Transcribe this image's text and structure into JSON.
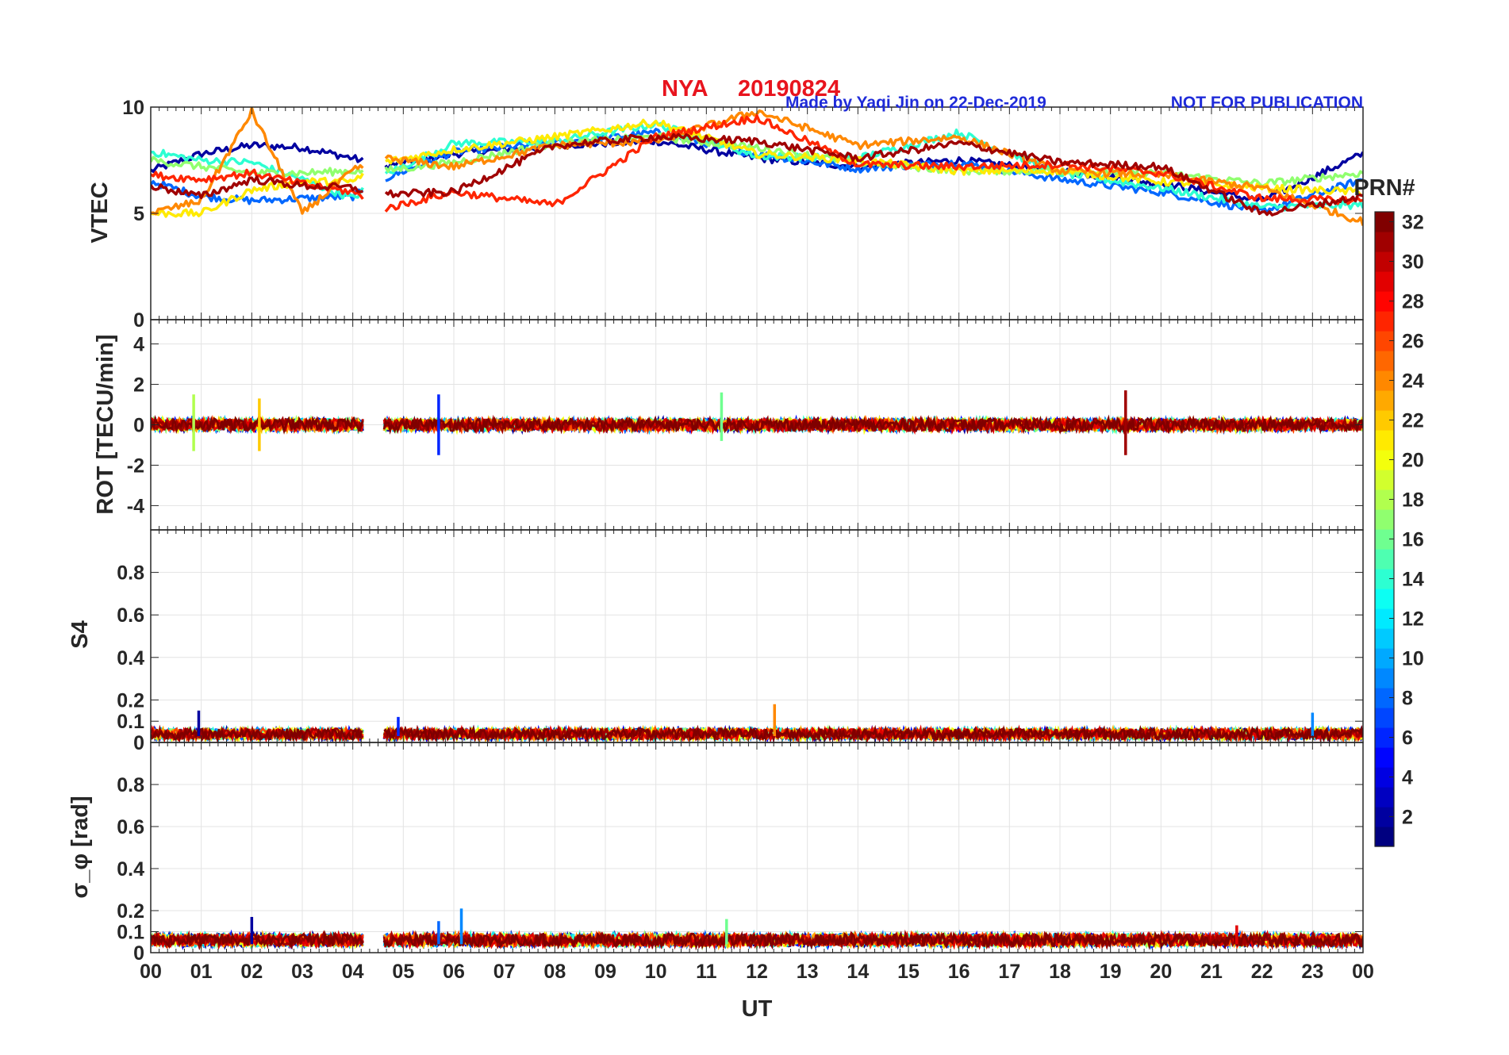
{
  "header": {
    "station": "NYA",
    "date": "20190824",
    "credit": "Made by Yaqi Jin on 22-Dec-2019",
    "notice": "NOT FOR PUBLICATION",
    "title_color": "#e8141e",
    "note_color": "#1f2bd9"
  },
  "chart_data": {
    "type": "line",
    "title": "NYA   20190824",
    "xlabel": "UT",
    "x_range": [
      0,
      24
    ],
    "x_ticks": [
      "00",
      "01",
      "02",
      "03",
      "04",
      "05",
      "06",
      "07",
      "08",
      "09",
      "10",
      "11",
      "12",
      "13",
      "14",
      "15",
      "16",
      "17",
      "18",
      "19",
      "20",
      "21",
      "22",
      "23",
      "00"
    ],
    "data_gap_ut": [
      4.2,
      4.6
    ],
    "colorbar": {
      "label": "PRN#",
      "range": [
        1,
        32
      ],
      "ticks": [
        "2",
        "4",
        "6",
        "8",
        "10",
        "12",
        "14",
        "16",
        "18",
        "20",
        "22",
        "24",
        "26",
        "28",
        "30",
        "32"
      ],
      "colormap": "jet"
    },
    "panels": [
      {
        "name": "vtec",
        "ylabel": "VTEC",
        "ylim": [
          0,
          10
        ],
        "yticks": [
          0,
          5,
          10
        ],
        "ytick_labels": [
          "0",
          "5",
          "10"
        ],
        "series_summary": [
          {
            "prn": 2,
            "ut": [
              0,
              1,
              2,
              3,
              4,
              4.6,
              6,
              8,
              10,
              12,
              14,
              16,
              18,
              20,
              22,
              24
            ],
            "values": [
              7,
              7.8,
              8.2,
              8.1,
              7.6,
              7.2,
              7.8,
              8.2,
              8.4,
              7.6,
              7.2,
              7.5,
              7.0,
              6.4,
              5.6,
              7.8
            ]
          },
          {
            "prn": 8,
            "ut": [
              0,
              1,
              2,
              3,
              4,
              4.6,
              6,
              8,
              10,
              12,
              14,
              16,
              18,
              20,
              22,
              24
            ],
            "values": [
              6.5,
              5.8,
              5.6,
              5.7,
              5.8,
              6.6,
              7.9,
              8.3,
              8.8,
              7.8,
              7.1,
              7.4,
              6.6,
              6.0,
              5.1,
              6.6
            ]
          },
          {
            "prn": 14,
            "ut": [
              0,
              1,
              2,
              3,
              4,
              4.6,
              6,
              8,
              10,
              12,
              14,
              16,
              18,
              20,
              22,
              24
            ],
            "values": [
              7.9,
              7.5,
              7.4,
              6.6,
              5.7,
              6.8,
              8.3,
              8.4,
              9.2,
              7.7,
              7.6,
              8.8,
              6.9,
              6.2,
              5.3,
              5.4
            ]
          },
          {
            "prn": 17,
            "ut": [
              0,
              1,
              2,
              3,
              4,
              4.6,
              6,
              8,
              10,
              12,
              14,
              16,
              18,
              20,
              22,
              24
            ],
            "values": [
              7.5,
              7.2,
              6.9,
              6.9,
              7.0,
              7.0,
              7.4,
              8.3,
              8.6,
              8.1,
              7.4,
              7.0,
              7.0,
              6.9,
              6.4,
              6.9
            ]
          },
          {
            "prn": 21,
            "ut": [
              0,
              1,
              2,
              3,
              4,
              4.6,
              6,
              8,
              10,
              12,
              14,
              16,
              18,
              20,
              22,
              24
            ],
            "values": [
              5.0,
              5.0,
              6.1,
              6.5,
              6.5,
              7.4,
              8.0,
              8.6,
              9.3,
              7.8,
              7.5,
              7.0,
              7.0,
              6.5,
              6.2,
              6.0
            ]
          },
          {
            "prn": 24,
            "ut": [
              0,
              1,
              2,
              3,
              4,
              4.6,
              6,
              8,
              10,
              12,
              14,
              16,
              18,
              20,
              22,
              24
            ],
            "values": [
              5.0,
              5.6,
              9.8,
              5.0,
              7.0,
              7.6,
              7.2,
              8.2,
              8.4,
              9.8,
              8.2,
              8.6,
              7.0,
              6.8,
              6.2,
              4.6
            ]
          },
          {
            "prn": 27,
            "ut": [
              0,
              1,
              2,
              3,
              4,
              4.6,
              6,
              8,
              10,
              12,
              14,
              16,
              18,
              20,
              22,
              24
            ],
            "values": [
              6.8,
              6.6,
              6.9,
              6.4,
              6.0,
              5.2,
              6.0,
              5.4,
              8.6,
              9.5,
              7.3,
              7.2,
              7.3,
              6.9,
              5.7,
              5.6
            ]
          },
          {
            "prn": 31,
            "ut": [
              0,
              1,
              2,
              3,
              4,
              4.6,
              6,
              8,
              10,
              12,
              14,
              16,
              18,
              20,
              22,
              24
            ],
            "values": [
              6.3,
              5.8,
              6.6,
              6.3,
              6.2,
              5.9,
              6.0,
              8.2,
              8.6,
              8.4,
              7.6,
              8.3,
              7.4,
              7.2,
              5.0,
              5.8
            ]
          }
        ]
      },
      {
        "name": "rot",
        "ylabel": "ROT [TECU/min]",
        "ylim": [
          -5.2,
          5.2
        ],
        "yticks": [
          -4,
          -2,
          0,
          2,
          4
        ],
        "ytick_labels": [
          "-4",
          "-2",
          "0",
          "2",
          "4"
        ],
        "notable_spikes": [
          {
            "ut": 0.85,
            "prn": 18,
            "max": 1.5,
            "min": -1.3
          },
          {
            "ut": 2.15,
            "prn": 22,
            "max": 1.3,
            "min": -1.3
          },
          {
            "ut": 5.7,
            "prn": 6,
            "max": 1.5,
            "min": -1.5
          },
          {
            "ut": 11.3,
            "prn": 16,
            "max": 1.6,
            "min": -0.8
          },
          {
            "ut": 19.3,
            "prn": 31,
            "max": 1.7,
            "min": -1.5
          }
        ],
        "baseline_noise_abs": 0.3
      },
      {
        "name": "s4",
        "ylabel": "S4",
        "ylim": [
          0,
          1
        ],
        "yticks": [
          0,
          0.1,
          0.2,
          0.4,
          0.6,
          0.8
        ],
        "ytick_labels": [
          "0",
          "0.1",
          "0.2",
          "0.4",
          "0.6",
          "0.8"
        ],
        "notable_spikes": [
          {
            "ut": 0.95,
            "prn": 2,
            "value": 0.15
          },
          {
            "ut": 4.9,
            "prn": 6,
            "value": 0.12
          },
          {
            "ut": 12.35,
            "prn": 24,
            "value": 0.18
          },
          {
            "ut": 23.0,
            "prn": 9,
            "value": 0.14
          }
        ],
        "baseline": 0.04
      },
      {
        "name": "sigma_phi",
        "ylabel": "σ_φ [rad]",
        "ylim": [
          0,
          1
        ],
        "yticks": [
          0,
          0.1,
          0.2,
          0.4,
          0.6,
          0.8
        ],
        "ytick_labels": [
          "0",
          "0.1",
          "0.2",
          "0.4",
          "0.6",
          "0.8"
        ],
        "notable_spikes": [
          {
            "ut": 2.0,
            "prn": 2,
            "value": 0.17
          },
          {
            "ut": 6.15,
            "prn": 9,
            "value": 0.21
          },
          {
            "ut": 5.7,
            "prn": 8,
            "value": 0.15
          },
          {
            "ut": 11.4,
            "prn": 16,
            "value": 0.16
          },
          {
            "ut": 21.5,
            "prn": 29,
            "value": 0.13
          }
        ],
        "baseline": 0.06
      }
    ]
  }
}
